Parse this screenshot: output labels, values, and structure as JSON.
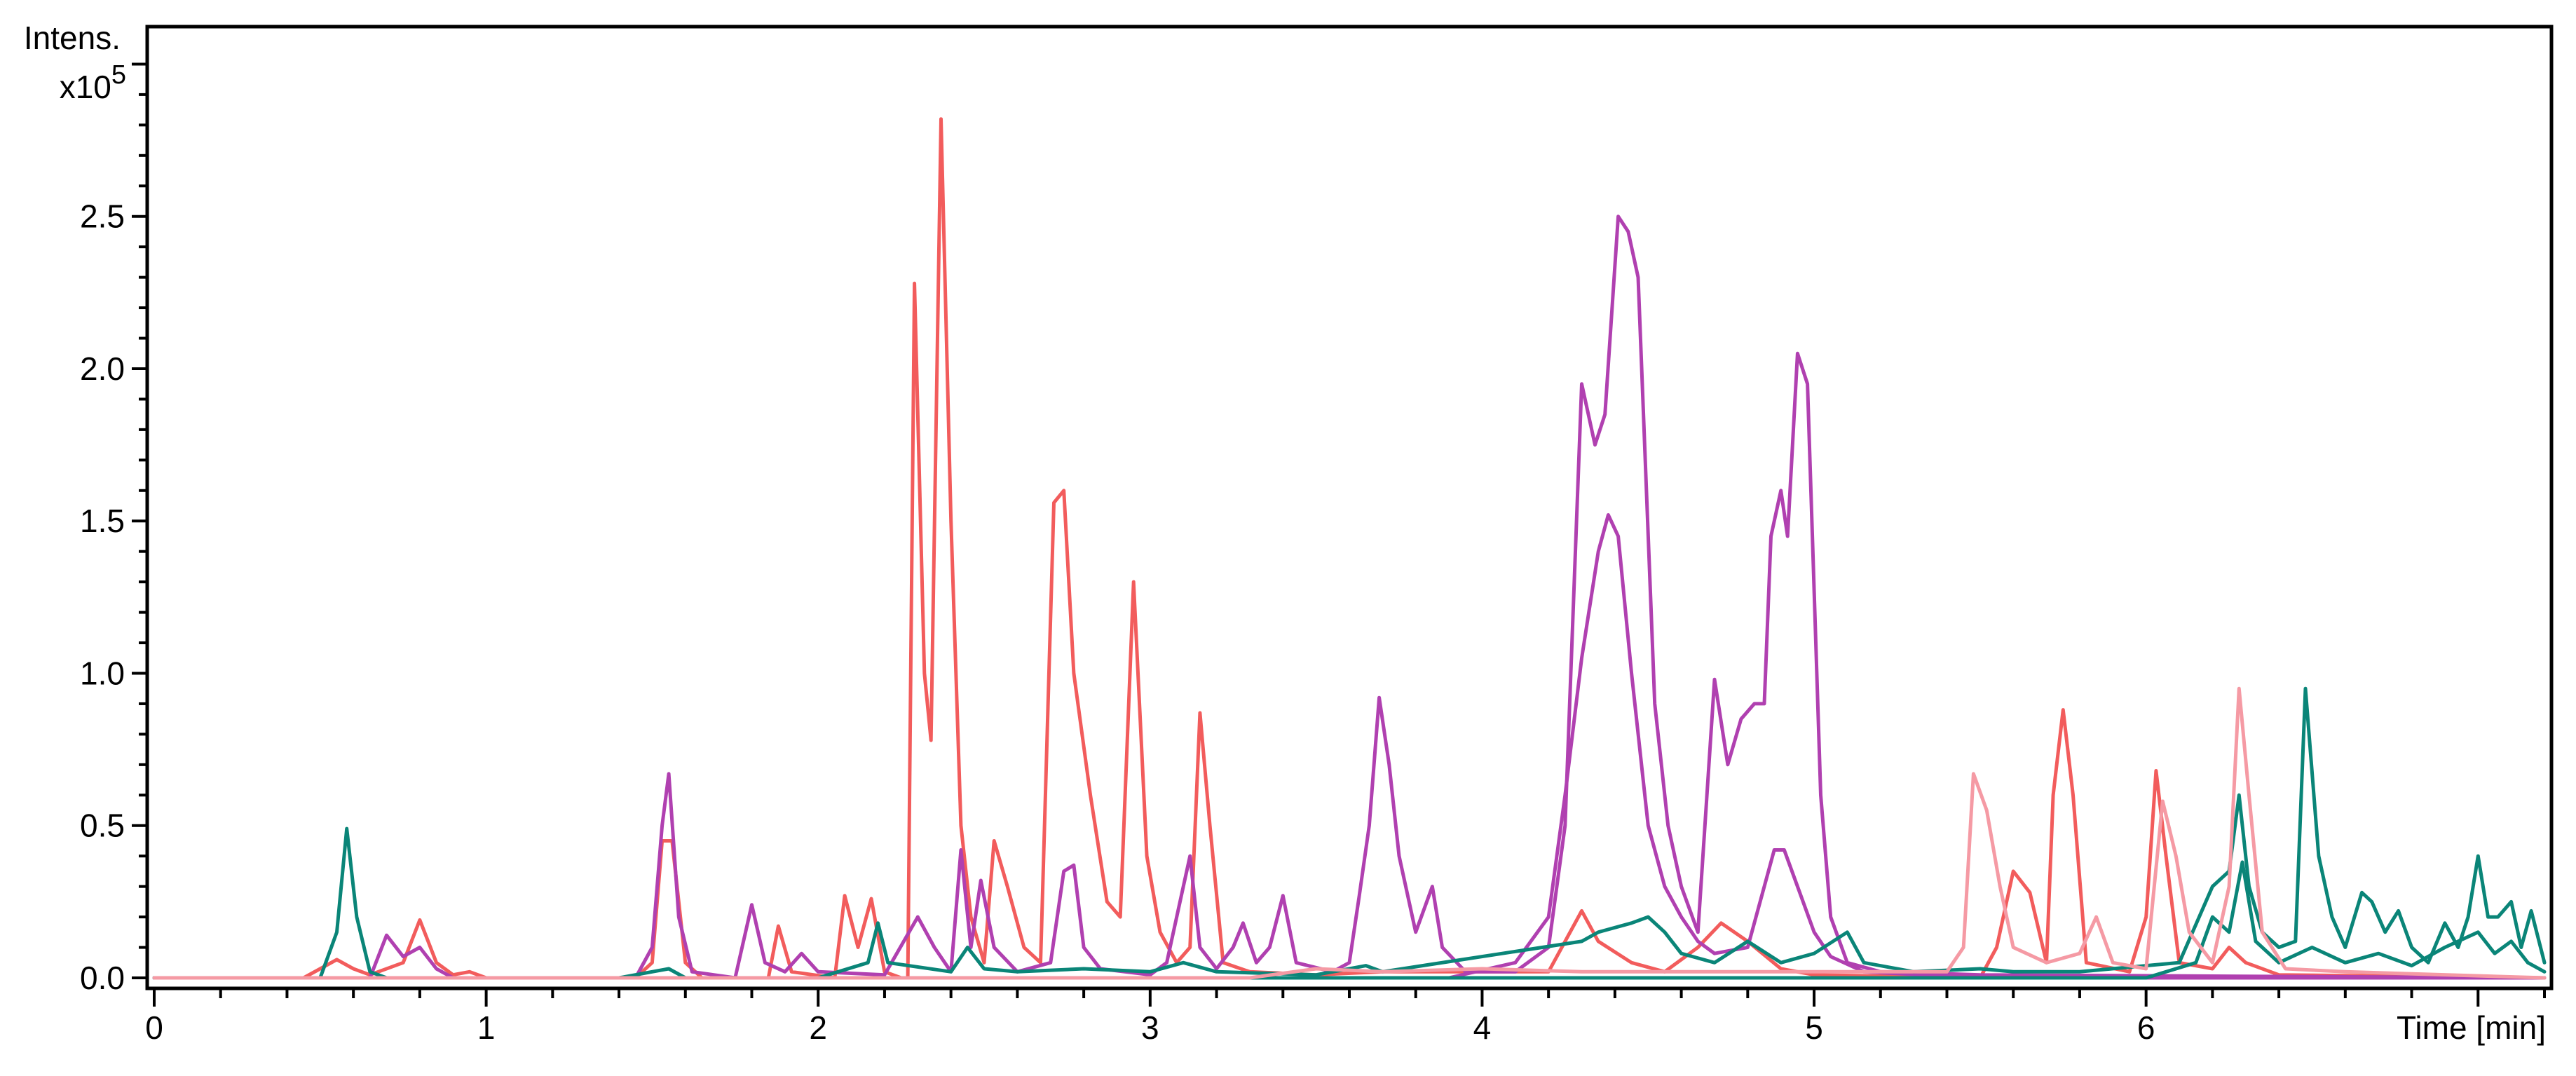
{
  "chart_data": {
    "type": "line",
    "title": "",
    "ylabel": "Intens.",
    "yscale_label": "x10",
    "yscale_exponent": "5",
    "xlabel": "Time [min]",
    "xlim": [
      0,
      7.2
    ],
    "ylim": [
      0,
      3.1
    ],
    "x_ticks": [
      "0",
      "1",
      "2",
      "3",
      "4",
      "5",
      "6"
    ],
    "y_ticks": [
      "0.0",
      "0.5",
      "1.0",
      "1.5",
      "2.0",
      "2.5"
    ],
    "x_tick_values": [
      0,
      1,
      2,
      3,
      4,
      5,
      6
    ],
    "y_tick_values": [
      0,
      0.5,
      1.0,
      1.5,
      2.0,
      2.5
    ],
    "grid": false,
    "legend": "none",
    "colors": {
      "coral": "#f25c5c",
      "magenta": "#b040b0",
      "teal": "#0a8578",
      "pink": "#f59aa4"
    },
    "series": [
      {
        "color": "#f25c5c",
        "points": [
          [
            0,
            0
          ],
          [
            0.45,
            0
          ],
          [
            0.5,
            0.03
          ],
          [
            0.55,
            0.06
          ],
          [
            0.6,
            0.03
          ],
          [
            0.65,
            0.01
          ],
          [
            0.75,
            0.05
          ],
          [
            0.8,
            0.19
          ],
          [
            0.85,
            0.05
          ],
          [
            0.9,
            0.01
          ],
          [
            0.95,
            0.02
          ],
          [
            1.0,
            0
          ],
          [
            1.45,
            0
          ],
          [
            1.5,
            0.05
          ],
          [
            1.53,
            0.45
          ],
          [
            1.56,
            0.45
          ],
          [
            1.6,
            0.05
          ],
          [
            1.65,
            0
          ],
          [
            1.85,
            0
          ],
          [
            1.88,
            0.17
          ],
          [
            1.92,
            0.02
          ],
          [
            2.05,
            0
          ],
          [
            2.08,
            0.27
          ],
          [
            2.12,
            0.1
          ],
          [
            2.16,
            0.26
          ],
          [
            2.2,
            0.02
          ],
          [
            2.25,
            0
          ],
          [
            2.27,
            0
          ],
          [
            2.29,
            2.28
          ],
          [
            2.32,
            1.0
          ],
          [
            2.34,
            0.78
          ],
          [
            2.37,
            2.82
          ],
          [
            2.4,
            1.5
          ],
          [
            2.43,
            0.5
          ],
          [
            2.46,
            0.2
          ],
          [
            2.5,
            0.05
          ],
          [
            2.53,
            0.45
          ],
          [
            2.57,
            0.3
          ],
          [
            2.62,
            0.1
          ],
          [
            2.67,
            0.05
          ],
          [
            2.71,
            1.56
          ],
          [
            2.74,
            1.6
          ],
          [
            2.77,
            1.0
          ],
          [
            2.82,
            0.6
          ],
          [
            2.87,
            0.25
          ],
          [
            2.91,
            0.2
          ],
          [
            2.95,
            1.3
          ],
          [
            2.99,
            0.4
          ],
          [
            3.03,
            0.15
          ],
          [
            3.08,
            0.05
          ],
          [
            3.12,
            0.1
          ],
          [
            3.15,
            0.87
          ],
          [
            3.18,
            0.5
          ],
          [
            3.22,
            0.05
          ],
          [
            3.3,
            0.02
          ],
          [
            3.5,
            0.01
          ],
          [
            3.7,
            0.02
          ],
          [
            4.2,
            0.02
          ],
          [
            4.3,
            0.22
          ],
          [
            4.35,
            0.12
          ],
          [
            4.45,
            0.05
          ],
          [
            4.55,
            0.02
          ],
          [
            4.65,
            0.1
          ],
          [
            4.72,
            0.18
          ],
          [
            4.8,
            0.12
          ],
          [
            4.9,
            0.03
          ],
          [
            5.0,
            0.01
          ],
          [
            5.5,
            0
          ],
          [
            5.55,
            0.1
          ],
          [
            5.6,
            0.35
          ],
          [
            5.65,
            0.28
          ],
          [
            5.7,
            0.05
          ],
          [
            5.72,
            0.6
          ],
          [
            5.75,
            0.88
          ],
          [
            5.78,
            0.6
          ],
          [
            5.82,
            0.05
          ],
          [
            5.95,
            0.02
          ],
          [
            6.0,
            0.2
          ],
          [
            6.03,
            0.68
          ],
          [
            6.06,
            0.4
          ],
          [
            6.1,
            0.05
          ],
          [
            6.2,
            0.03
          ],
          [
            6.25,
            0.1
          ],
          [
            6.3,
            0.05
          ],
          [
            6.4,
            0.01
          ],
          [
            7.2,
            0
          ]
        ]
      },
      {
        "color": "#b040b0",
        "points": [
          [
            0,
            0
          ],
          [
            0.65,
            0
          ],
          [
            0.7,
            0.14
          ],
          [
            0.75,
            0.07
          ],
          [
            0.8,
            0.1
          ],
          [
            0.85,
            0.03
          ],
          [
            0.9,
            0
          ],
          [
            1.45,
            0
          ],
          [
            1.5,
            0.1
          ],
          [
            1.53,
            0.5
          ],
          [
            1.55,
            0.67
          ],
          [
            1.58,
            0.2
          ],
          [
            1.62,
            0.02
          ],
          [
            1.75,
            0
          ],
          [
            1.8,
            0.24
          ],
          [
            1.84,
            0.05
          ],
          [
            1.9,
            0.02
          ],
          [
            1.95,
            0.08
          ],
          [
            2.0,
            0.02
          ],
          [
            2.2,
            0.01
          ],
          [
            2.3,
            0.2
          ],
          [
            2.35,
            0.1
          ],
          [
            2.4,
            0.02
          ],
          [
            2.43,
            0.42
          ],
          [
            2.46,
            0.1
          ],
          [
            2.49,
            0.32
          ],
          [
            2.53,
            0.1
          ],
          [
            2.6,
            0.02
          ],
          [
            2.7,
            0.05
          ],
          [
            2.74,
            0.35
          ],
          [
            2.77,
            0.37
          ],
          [
            2.8,
            0.1
          ],
          [
            2.85,
            0.03
          ],
          [
            3.0,
            0.01
          ],
          [
            3.05,
            0.05
          ],
          [
            3.1,
            0.3
          ],
          [
            3.12,
            0.4
          ],
          [
            3.15,
            0.1
          ],
          [
            3.2,
            0.03
          ],
          [
            3.25,
            0.1
          ],
          [
            3.28,
            0.18
          ],
          [
            3.32,
            0.05
          ],
          [
            3.36,
            0.1
          ],
          [
            3.4,
            0.27
          ],
          [
            3.44,
            0.05
          ],
          [
            3.55,
            0.02
          ],
          [
            3.6,
            0.05
          ],
          [
            3.63,
            0.27
          ],
          [
            3.66,
            0.5
          ],
          [
            3.69,
            0.92
          ],
          [
            3.72,
            0.7
          ],
          [
            3.75,
            0.4
          ],
          [
            3.8,
            0.15
          ],
          [
            3.85,
            0.3
          ],
          [
            3.88,
            0.1
          ],
          [
            3.95,
            0.02
          ],
          [
            4.1,
            0.02
          ],
          [
            4.2,
            0.1
          ],
          [
            4.25,
            0.5
          ],
          [
            4.3,
            1.95
          ],
          [
            4.34,
            1.75
          ],
          [
            4.37,
            1.85
          ],
          [
            4.41,
            2.5
          ],
          [
            4.44,
            2.45
          ],
          [
            4.47,
            2.3
          ],
          [
            4.52,
            0.9
          ],
          [
            4.56,
            0.5
          ],
          [
            4.6,
            0.3
          ],
          [
            4.65,
            0.15
          ],
          [
            4.7,
            0.98
          ],
          [
            4.74,
            0.7
          ],
          [
            4.78,
            0.85
          ],
          [
            4.82,
            0.9
          ],
          [
            4.85,
            0.9
          ],
          [
            4.87,
            1.45
          ],
          [
            4.9,
            1.6
          ],
          [
            4.92,
            1.45
          ],
          [
            4.95,
            2.05
          ],
          [
            4.98,
            1.95
          ],
          [
            5.02,
            0.6
          ],
          [
            5.05,
            0.2
          ],
          [
            5.1,
            0.05
          ],
          [
            5.2,
            0.02
          ],
          [
            5.5,
            0.01
          ],
          [
            7.2,
            0
          ]
        ]
      },
      {
        "color": "#b040b0",
        "points": [
          [
            0,
            0
          ],
          [
            3.9,
            0
          ],
          [
            4.1,
            0.05
          ],
          [
            4.2,
            0.2
          ],
          [
            4.25,
            0.6
          ],
          [
            4.3,
            1.05
          ],
          [
            4.35,
            1.4
          ],
          [
            4.38,
            1.52
          ],
          [
            4.41,
            1.45
          ],
          [
            4.45,
            1.0
          ],
          [
            4.5,
            0.5
          ],
          [
            4.55,
            0.3
          ],
          [
            4.6,
            0.2
          ],
          [
            4.65,
            0.12
          ],
          [
            4.7,
            0.08
          ],
          [
            4.8,
            0.1
          ],
          [
            4.85,
            0.3
          ],
          [
            4.88,
            0.42
          ],
          [
            4.91,
            0.42
          ],
          [
            4.95,
            0.3
          ],
          [
            5.0,
            0.15
          ],
          [
            5.05,
            0.07
          ],
          [
            5.15,
            0.02
          ],
          [
            5.5,
            0
          ],
          [
            7.2,
            0
          ]
        ]
      },
      {
        "color": "#0a8578",
        "points": [
          [
            0,
            0
          ],
          [
            0.5,
            0
          ],
          [
            0.55,
            0.15
          ],
          [
            0.58,
            0.49
          ],
          [
            0.61,
            0.2
          ],
          [
            0.65,
            0.02
          ],
          [
            0.7,
            0
          ],
          [
            1.4,
            0
          ],
          [
            1.5,
            0.02
          ],
          [
            1.55,
            0.03
          ],
          [
            1.6,
            0
          ],
          [
            2.0,
            0
          ],
          [
            2.15,
            0.05
          ],
          [
            2.18,
            0.18
          ],
          [
            2.21,
            0.05
          ],
          [
            2.4,
            0.02
          ],
          [
            2.45,
            0.1
          ],
          [
            2.5,
            0.03
          ],
          [
            2.6,
            0.02
          ],
          [
            2.8,
            0.03
          ],
          [
            3.0,
            0.02
          ],
          [
            3.1,
            0.05
          ],
          [
            3.2,
            0.02
          ],
          [
            3.5,
            0.01
          ],
          [
            3.65,
            0.04
          ],
          [
            3.7,
            0.02
          ],
          [
            4.3,
            0.12
          ],
          [
            4.35,
            0.15
          ],
          [
            4.45,
            0.18
          ],
          [
            4.5,
            0.2
          ],
          [
            4.55,
            0.15
          ],
          [
            4.6,
            0.08
          ],
          [
            4.7,
            0.05
          ],
          [
            4.8,
            0.12
          ],
          [
            4.9,
            0.05
          ],
          [
            5.0,
            0.08
          ],
          [
            5.1,
            0.15
          ],
          [
            5.15,
            0.05
          ],
          [
            5.3,
            0.02
          ],
          [
            5.5,
            0.03
          ],
          [
            5.6,
            0.02
          ],
          [
            5.8,
            0.02
          ],
          [
            6.1,
            0.05
          ],
          [
            6.2,
            0.3
          ],
          [
            6.25,
            0.35
          ],
          [
            6.28,
            0.6
          ],
          [
            6.31,
            0.3
          ],
          [
            6.35,
            0.15
          ],
          [
            6.4,
            0.1
          ],
          [
            6.45,
            0.12
          ],
          [
            6.48,
            0.95
          ],
          [
            6.52,
            0.4
          ],
          [
            6.56,
            0.2
          ],
          [
            6.6,
            0.1
          ],
          [
            6.65,
            0.28
          ],
          [
            6.68,
            0.25
          ],
          [
            6.72,
            0.15
          ],
          [
            6.76,
            0.22
          ],
          [
            6.8,
            0.1
          ],
          [
            6.85,
            0.05
          ],
          [
            6.9,
            0.18
          ],
          [
            6.94,
            0.1
          ],
          [
            6.97,
            0.2
          ],
          [
            7.0,
            0.4
          ],
          [
            7.03,
            0.2
          ],
          [
            7.06,
            0.2
          ],
          [
            7.1,
            0.25
          ],
          [
            7.13,
            0.1
          ],
          [
            7.16,
            0.22
          ],
          [
            7.2,
            0.05
          ]
        ]
      },
      {
        "color": "#0a8578",
        "points": [
          [
            0,
            0
          ],
          [
            6.0,
            0
          ],
          [
            6.15,
            0.05
          ],
          [
            6.2,
            0.2
          ],
          [
            6.25,
            0.15
          ],
          [
            6.29,
            0.38
          ],
          [
            6.33,
            0.12
          ],
          [
            6.4,
            0.05
          ],
          [
            6.5,
            0.1
          ],
          [
            6.6,
            0.05
          ],
          [
            6.7,
            0.08
          ],
          [
            6.8,
            0.04
          ],
          [
            6.9,
            0.1
          ],
          [
            7.0,
            0.15
          ],
          [
            7.05,
            0.08
          ],
          [
            7.1,
            0.12
          ],
          [
            7.15,
            0.05
          ],
          [
            7.2,
            0.02
          ]
        ]
      },
      {
        "color": "#f59aa4",
        "points": [
          [
            0,
            0
          ],
          [
            3.3,
            0
          ],
          [
            3.5,
            0.03
          ],
          [
            3.7,
            0.02
          ],
          [
            4.0,
            0.03
          ],
          [
            4.3,
            0.02
          ],
          [
            5.0,
            0.02
          ],
          [
            5.4,
            0.02
          ],
          [
            5.45,
            0.1
          ],
          [
            5.48,
            0.67
          ],
          [
            5.52,
            0.55
          ],
          [
            5.56,
            0.3
          ],
          [
            5.6,
            0.1
          ],
          [
            5.7,
            0.05
          ],
          [
            5.8,
            0.08
          ],
          [
            5.85,
            0.2
          ],
          [
            5.9,
            0.05
          ],
          [
            6.0,
            0.03
          ],
          [
            6.05,
            0.58
          ],
          [
            6.09,
            0.4
          ],
          [
            6.13,
            0.15
          ],
          [
            6.2,
            0.05
          ],
          [
            6.25,
            0.3
          ],
          [
            6.28,
            0.95
          ],
          [
            6.31,
            0.6
          ],
          [
            6.35,
            0.15
          ],
          [
            6.42,
            0.03
          ],
          [
            6.6,
            0.02
          ],
          [
            7.2,
            0
          ]
        ]
      }
    ]
  }
}
